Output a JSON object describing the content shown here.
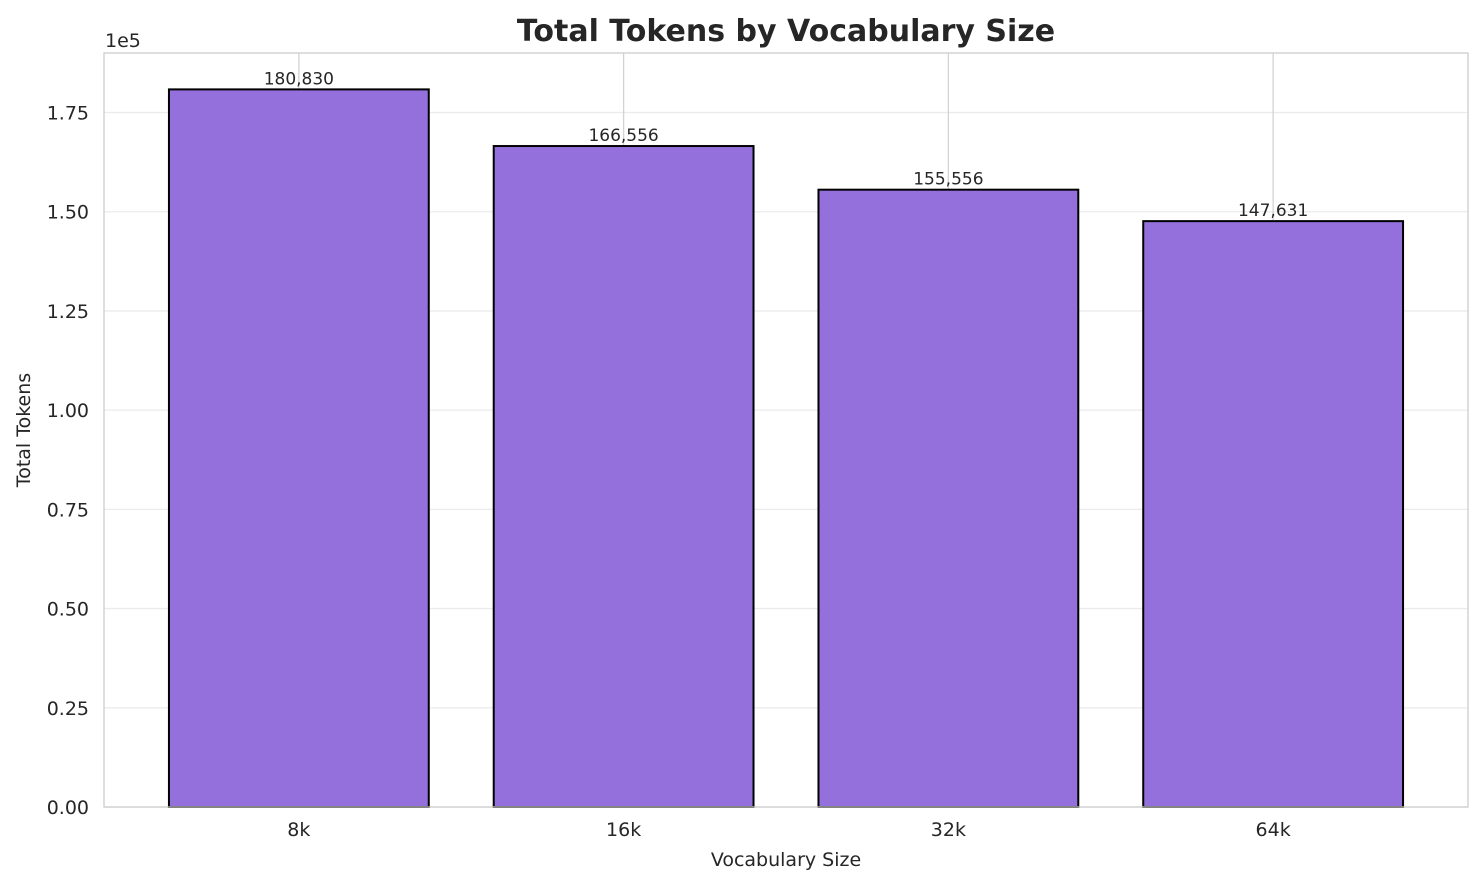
{
  "chart_data": {
    "type": "bar",
    "title": "Total Tokens by Vocabulary Size",
    "xlabel": "Vocabulary Size",
    "ylabel": "Total Tokens",
    "y_offset_label": "1e5",
    "categories": [
      "8k",
      "16k",
      "32k",
      "64k"
    ],
    "values": [
      180830,
      166556,
      155556,
      147631
    ],
    "value_labels": [
      "180,830",
      "166,556",
      "155,556",
      "147,631"
    ],
    "ylim": [
      0,
      190000
    ],
    "yticks": [
      0,
      25000,
      50000,
      75000,
      100000,
      125000,
      150000,
      175000
    ],
    "ytick_labels": [
      "0.00",
      "0.25",
      "0.50",
      "0.75",
      "1.00",
      "1.25",
      "1.50",
      "1.75"
    ],
    "grid": true,
    "colors": {
      "bar": "#9370DB",
      "edge": "#000000",
      "grid": "#ebebeb",
      "xgrid": "#d3d3d3",
      "spine": "#cccccc"
    }
  }
}
